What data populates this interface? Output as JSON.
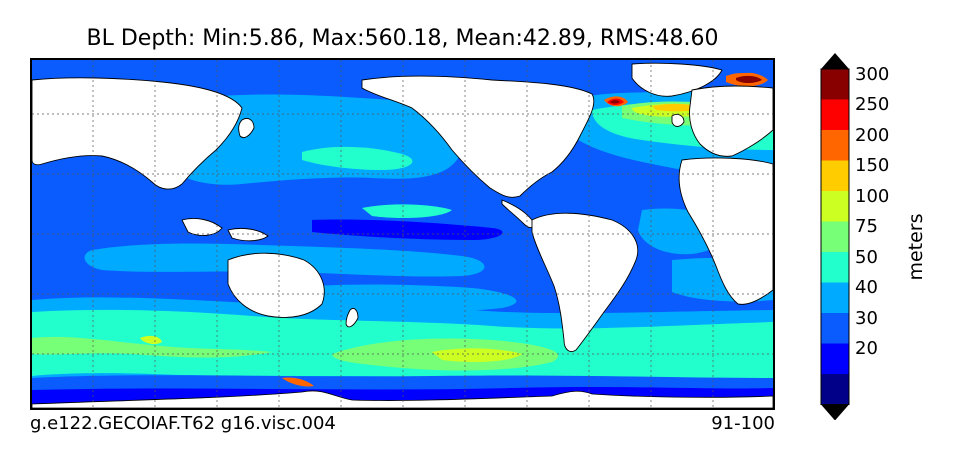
{
  "title": "BL Depth: Min:5.86, Max:560.18, Mean:42.89, RMS:48.60",
  "caption_left": "g.e122.GECOIAF.T62 g16.visc.004",
  "caption_right": "91-100",
  "colorbar": {
    "label": "meters",
    "extend": "both",
    "levels": [
      {
        "value": 20,
        "label": "20",
        "color": "#0000ff"
      },
      {
        "value": 30,
        "label": "30",
        "color": "#0a5cff"
      },
      {
        "value": 40,
        "label": "40",
        "color": "#00aaff"
      },
      {
        "value": 50,
        "label": "50",
        "color": "#22ffcc"
      },
      {
        "value": 75,
        "label": "75",
        "color": "#77ff77"
      },
      {
        "value": 100,
        "label": "100",
        "color": "#ccff22"
      },
      {
        "value": 150,
        "label": "150",
        "color": "#ffcc00"
      },
      {
        "value": 200,
        "label": "200",
        "color": "#ff6600"
      },
      {
        "value": 250,
        "label": "250",
        "color": "#ff0000"
      },
      {
        "value": 300,
        "label": "300",
        "color": "#880000"
      }
    ],
    "under_color": "#000088",
    "over_color": "#000000"
  },
  "colors": {
    "land": "#ffffff",
    "coast": "#000000",
    "grid": "#555555"
  }
}
